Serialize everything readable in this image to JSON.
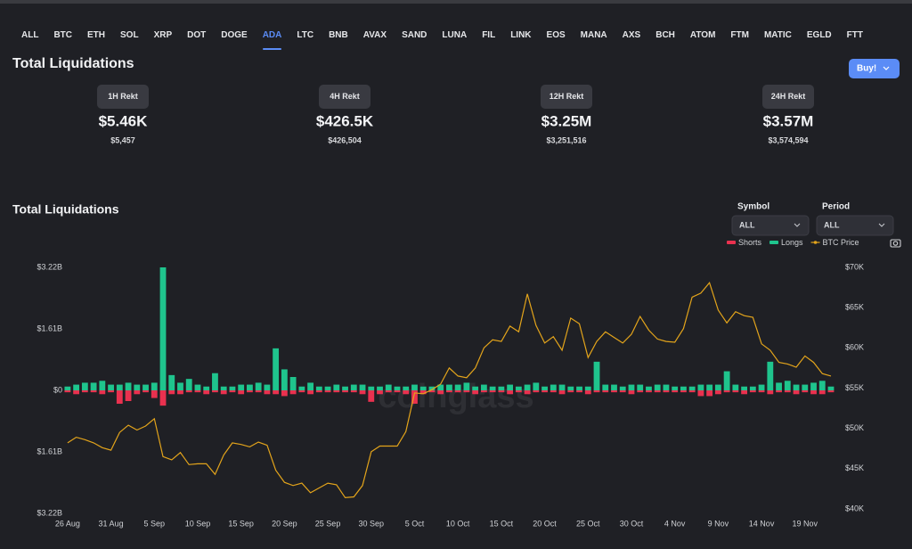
{
  "nav": {
    "tabs": [
      "ALL",
      "BTC",
      "ETH",
      "SOL",
      "XRP",
      "DOT",
      "DOGE",
      "ADA",
      "LTC",
      "BNB",
      "AVAX",
      "SAND",
      "LUNA",
      "FIL",
      "LINK",
      "EOS",
      "MANA",
      "AXS",
      "BCH",
      "ATOM",
      "FTM",
      "MATIC",
      "EGLD",
      "FTT"
    ],
    "active_index": 7
  },
  "header": {
    "title": "Total Liquidations",
    "button": "Buy!"
  },
  "cards": [
    {
      "label": "1H Rekt",
      "value": "$5.46K",
      "exact": "$5,457"
    },
    {
      "label": "4H Rekt",
      "value": "$426.5K",
      "exact": "$426,504"
    },
    {
      "label": "12H Rekt",
      "value": "$3.25M",
      "exact": "$3,251,516"
    },
    {
      "label": "24H Rekt",
      "value": "$3.57M",
      "exact": "$3,574,594"
    }
  ],
  "filters": [
    {
      "label": "Symbol",
      "value": "ALL"
    },
    {
      "label": "Period",
      "value": "ALL"
    }
  ],
  "chart_data": {
    "type": "bar",
    "title": "Total Liquidations",
    "watermark": "coinglass",
    "categories": [
      "26 Aug",
      null,
      null,
      null,
      null,
      "31 Aug",
      null,
      null,
      null,
      null,
      "5 Sep",
      null,
      null,
      null,
      null,
      "10 Sep",
      null,
      null,
      null,
      null,
      "15 Sep",
      null,
      null,
      null,
      null,
      "20 Sep",
      null,
      null,
      null,
      null,
      "25 Sep",
      null,
      null,
      null,
      null,
      "30 Sep",
      null,
      null,
      null,
      null,
      "5 Oct",
      null,
      null,
      null,
      null,
      "10 Oct",
      null,
      null,
      null,
      null,
      "15 Oct",
      null,
      null,
      null,
      null,
      "20 Oct",
      null,
      null,
      null,
      null,
      "25 Oct",
      null,
      null,
      null,
      null,
      "30 Oct",
      null,
      null,
      null,
      null,
      "4 Nov",
      null,
      null,
      null,
      null,
      "9 Nov",
      null,
      null,
      null,
      null,
      "14 Nov",
      null,
      null,
      null,
      null,
      "19 Nov",
      null,
      null,
      null
    ],
    "series": [
      {
        "name": "Shorts",
        "color": "#e9314f",
        "type": "bar",
        "values": [
          -50000000.0,
          -100000000.0,
          -50000000.0,
          -50000000.0,
          -100000000.0,
          -50000000.0,
          -350000000.0,
          -280000000.0,
          -100000000.0,
          -50000000.0,
          -200000000.0,
          -400000000.0,
          -100000000.0,
          -100000000.0,
          -50000000.0,
          -50000000.0,
          -100000000.0,
          -50000000.0,
          -100000000.0,
          -50000000.0,
          -100000000.0,
          -50000000.0,
          -50000000.0,
          -100000000.0,
          -100000000.0,
          -150000000.0,
          -100000000.0,
          -50000000.0,
          -100000000.0,
          -50000000.0,
          -50000000.0,
          -50000000.0,
          -50000000.0,
          -50000000.0,
          -100000000.0,
          -300000000.0,
          -100000000.0,
          -50000000.0,
          -50000000.0,
          -100000000.0,
          -350000000.0,
          -100000000.0,
          -50000000.0,
          -100000000.0,
          -50000000.0,
          -50000000.0,
          -50000000.0,
          -100000000.0,
          -50000000.0,
          -50000000.0,
          -50000000.0,
          -100000000.0,
          -50000000.0,
          -100000000.0,
          -50000000.0,
          -50000000.0,
          -50000000.0,
          -100000000.0,
          -50000000.0,
          -50000000.0,
          -100000000.0,
          -50000000.0,
          -50000000.0,
          -50000000.0,
          -50000000.0,
          -100000000.0,
          -50000000.0,
          -50000000.0,
          -50000000.0,
          -50000000.0,
          -50000000.0,
          -50000000.0,
          -50000000.0,
          -150000000.0,
          -150000000.0,
          -100000000.0,
          -50000000.0,
          -50000000.0,
          -100000000.0,
          -50000000.0,
          -50000000.0,
          -100000000.0,
          -50000000.0,
          -50000000.0,
          -100000000.0,
          -50000000.0,
          -100000000.0,
          -100000000.0,
          -50000000.0
        ]
      },
      {
        "name": "Longs",
        "color": "#1fc48d",
        "type": "bar",
        "values": [
          100000000.0,
          150000000.0,
          200000000.0,
          200000000.0,
          250000000.0,
          150000000.0,
          150000000.0,
          200000000.0,
          150000000.0,
          150000000.0,
          200000000.0,
          3220000000.0,
          400000000.0,
          200000000.0,
          300000000.0,
          150000000.0,
          100000000.0,
          450000000.0,
          100000000.0,
          100000000.0,
          150000000.0,
          150000000.0,
          200000000.0,
          150000000.0,
          1100000000.0,
          550000000.0,
          350000000.0,
          100000000.0,
          200000000.0,
          100000000.0,
          100000000.0,
          150000000.0,
          100000000.0,
          150000000.0,
          150000000.0,
          100000000.0,
          100000000.0,
          150000000.0,
          100000000.0,
          100000000.0,
          150000000.0,
          100000000.0,
          100000000.0,
          150000000.0,
          150000000.0,
          150000000.0,
          200000000.0,
          100000000.0,
          150000000.0,
          100000000.0,
          100000000.0,
          150000000.0,
          100000000.0,
          150000000.0,
          200000000.0,
          100000000.0,
          150000000.0,
          150000000.0,
          100000000.0,
          100000000.0,
          100000000.0,
          750000000.0,
          150000000.0,
          150000000.0,
          100000000.0,
          150000000.0,
          150000000.0,
          100000000.0,
          150000000.0,
          150000000.0,
          100000000.0,
          100000000.0,
          100000000.0,
          150000000.0,
          150000000.0,
          150000000.0,
          500000000.0,
          150000000.0,
          100000000.0,
          100000000.0,
          150000000.0,
          750000000.0,
          200000000.0,
          250000000.0,
          150000000.0,
          150000000.0,
          200000000.0,
          250000000.0,
          100000000.0
        ]
      },
      {
        "name": "BTC Price",
        "color": "#e3a41b",
        "type": "line",
        "axis": "y2",
        "values": [
          48200,
          48900,
          48600,
          48200,
          47600,
          47300,
          49500,
          50400,
          49800,
          50300,
          51200,
          46500,
          46100,
          47000,
          45500,
          45600,
          45600,
          44300,
          46700,
          48200,
          48000,
          47700,
          48300,
          47900,
          44800,
          43300,
          42900,
          43200,
          42000,
          42600,
          43200,
          43000,
          41400,
          41500,
          42900,
          47100,
          47800,
          47800,
          47800,
          49600,
          54400,
          54300,
          54800,
          55500,
          57500,
          56500,
          56300,
          57500,
          60000,
          61000,
          60800,
          62700,
          62000,
          66700,
          62800,
          60600,
          61400,
          59700,
          63700,
          63000,
          58800,
          60800,
          62000,
          61300,
          60600,
          61700,
          63900,
          62200,
          61100,
          60800,
          60700,
          62400,
          66300,
          66800,
          68100,
          64700,
          63100,
          64500,
          64000,
          63800,
          60500,
          59700,
          58200,
          58000,
          57600,
          59000,
          58200,
          56800,
          56500
        ]
      }
    ],
    "ylim": [
      -3220000000.0,
      3220000000.0
    ],
    "yticks": [
      {
        "value": -3220000000.0,
        "label": "$3.22B"
      },
      {
        "value": -1610000000.0,
        "label": "$1.61B"
      },
      {
        "value": 0,
        "label": "$0"
      },
      {
        "value": 1610000000.0,
        "label": "$1.61B"
      },
      {
        "value": 3220000000.0,
        "label": "$3.22B"
      }
    ],
    "y2lim": [
      40000,
      70000
    ],
    "y2ticks": [
      {
        "value": 40000,
        "label": "$40K"
      },
      {
        "value": 45000,
        "label": "$45K"
      },
      {
        "value": 50000,
        "label": "$50K"
      },
      {
        "value": 55000,
        "label": "$55K"
      },
      {
        "value": 60000,
        "label": "$60K"
      },
      {
        "value": 65000,
        "label": "$65K"
      },
      {
        "value": 70000,
        "label": "$70K"
      }
    ],
    "grid": false
  }
}
